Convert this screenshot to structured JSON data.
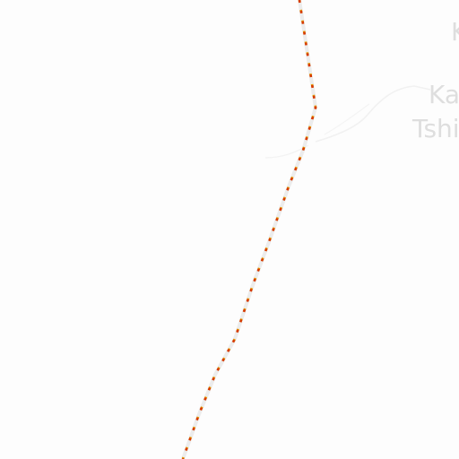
{
  "map": {
    "labels": [
      {
        "id": "label-k",
        "text": "K"
      },
      {
        "id": "label-ka",
        "text": "Ka"
      },
      {
        "id": "label-tshi",
        "text": "Tshi"
      }
    ],
    "colors": {
      "background": "#fdfdfd",
      "road_casing": "#ececec",
      "boundary_dash": "#d63a00",
      "boundary_dash_alt": "#e8a200",
      "minor_road": "#f2f2f2",
      "label": "#dedede"
    }
  }
}
